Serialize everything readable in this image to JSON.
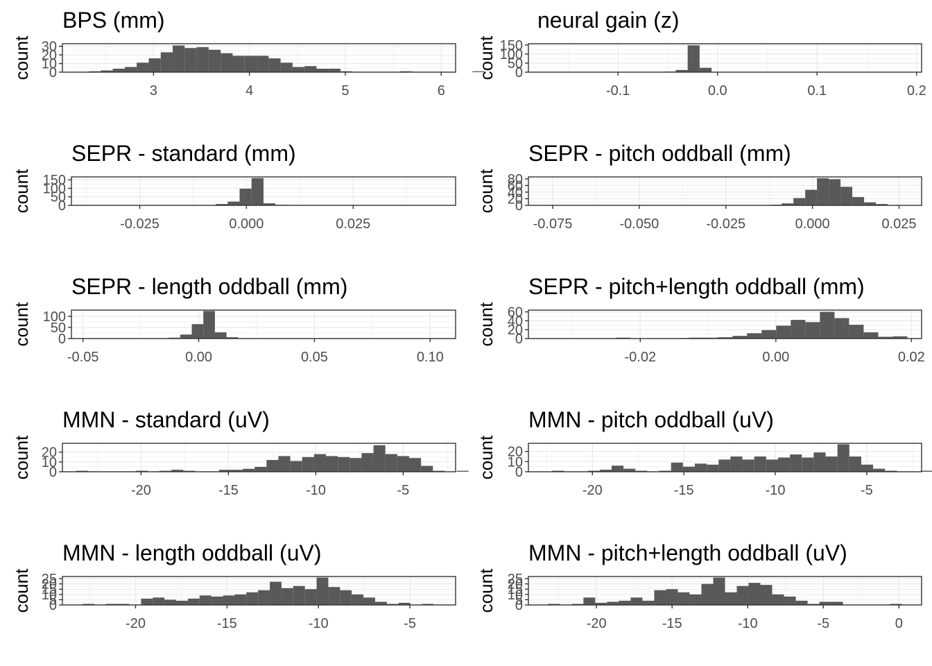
{
  "figure": {
    "ylabel": "count"
  },
  "chart_data": [
    {
      "type": "bar",
      "title": "BPS (mm)",
      "ylabel": "count",
      "x_ticks": [
        3,
        4,
        5,
        6
      ],
      "x_tick_labels": [
        "3",
        "4",
        "5",
        "6"
      ],
      "xlim": [
        2.05,
        6.15
      ],
      "y_ticks": [
        0,
        10,
        20,
        30
      ],
      "y_tick_labels": [
        "0",
        "10",
        "20",
        "30"
      ],
      "ylim": [
        0,
        33
      ],
      "bin_start": 2.2,
      "bin_width": 0.125,
      "counts": [
        0,
        1,
        2,
        4,
        6,
        11,
        16,
        23,
        31,
        28,
        29,
        26,
        22,
        19,
        19,
        19,
        16,
        11,
        6,
        7,
        4,
        4,
        1,
        0,
        0,
        0,
        0,
        1,
        0,
        0,
        0,
        0,
        0,
        1
      ],
      "bar_color": "#595959"
    },
    {
      "type": "bar",
      "title": "neural gain (z)",
      "ylabel": "count",
      "x_ticks": [
        -0.1,
        0.0,
        0.1,
        0.2
      ],
      "x_tick_labels": [
        "-0.1",
        "0.0",
        "0.1",
        "0.2"
      ],
      "xlim": [
        -0.19,
        0.205
      ],
      "y_ticks": [
        0,
        50,
        100,
        150
      ],
      "y_tick_labels": [
        "0",
        "50",
        "100",
        "150"
      ],
      "ylim": [
        0,
        157
      ],
      "bin_start": -0.066,
      "bin_width": 0.012,
      "counts": [
        1,
        3,
        12,
        148,
        24,
        2,
        1,
        0,
        0,
        0,
        0,
        0,
        0,
        0,
        0,
        0,
        0,
        0,
        1
      ],
      "bar_color": "#595959"
    },
    {
      "type": "bar",
      "title": "SEPR - standard (mm)",
      "ylabel": "count",
      "x_ticks": [
        -0.025,
        0.0,
        0.025
      ],
      "x_tick_labels": [
        "-0.025",
        "0.000",
        "0.025"
      ],
      "xlim": [
        -0.041,
        0.049
      ],
      "y_ticks": [
        0,
        50,
        100,
        150
      ],
      "y_tick_labels": [
        "0",
        "50",
        "100",
        "150"
      ],
      "ylim": [
        0,
        167
      ],
      "bin_start": -0.01,
      "bin_width": 0.0028,
      "counts": [
        2,
        8,
        22,
        98,
        160,
        12,
        3
      ],
      "bar_color": "#595959"
    },
    {
      "type": "bar",
      "title": "SEPR - pitch oddball (mm)",
      "ylabel": "count",
      "x_ticks": [
        -0.075,
        -0.05,
        -0.025,
        0.0,
        0.025
      ],
      "x_tick_labels": [
        "-0.075",
        "-0.050",
        "-0.025",
        "0.000",
        "0.025"
      ],
      "xlim": [
        -0.082,
        0.0315
      ],
      "y_ticks": [
        0,
        20,
        40,
        60,
        80
      ],
      "y_tick_labels": [
        "0",
        "20",
        "40",
        "60",
        "80"
      ],
      "ylim": [
        0,
        86
      ],
      "bin_start": -0.0225,
      "bin_width": 0.0034,
      "counts": [
        1,
        0,
        0,
        2,
        6,
        22,
        47,
        82,
        79,
        56,
        25,
        9,
        4,
        1,
        0,
        1
      ],
      "bar_color": "#595959"
    },
    {
      "type": "bar",
      "title": "SEPR - length oddball (mm)",
      "ylabel": "count",
      "x_ticks": [
        -0.05,
        0.0,
        0.05,
        0.1
      ],
      "x_tick_labels": [
        "-0.05",
        "0.00",
        "0.05",
        "0.10"
      ],
      "xlim": [
        -0.055,
        0.111
      ],
      "y_ticks": [
        0,
        50,
        100
      ],
      "y_tick_labels": [
        "0",
        "50",
        "100"
      ],
      "ylim": [
        0,
        128
      ],
      "bin_start": -0.018,
      "bin_width": 0.005,
      "counts": [
        1,
        4,
        18,
        65,
        124,
        28,
        6
      ],
      "bar_color": "#595959"
    },
    {
      "type": "bar",
      "title": "SEPR - pitch+length oddball (mm)",
      "ylabel": "count",
      "x_ticks": [
        -0.02,
        0.0,
        0.02
      ],
      "x_tick_labels": [
        "-0.02",
        "0.00",
        "0.02"
      ],
      "xlim": [
        -0.0365,
        0.0215
      ],
      "y_ticks": [
        0,
        20,
        40,
        60
      ],
      "y_tick_labels": [
        "0",
        "20",
        "40",
        "60"
      ],
      "ylim": [
        0,
        64
      ],
      "bin_start": -0.0236,
      "bin_width": 0.00215,
      "counts": [
        2,
        0,
        0,
        0,
        1,
        2,
        2,
        3,
        6,
        12,
        19,
        29,
        42,
        37,
        60,
        46,
        31,
        14,
        4,
        5,
        0,
        0,
        1
      ],
      "bar_color": "#595959"
    },
    {
      "type": "bar",
      "title": "MMN - standard (uV)",
      "ylabel": "count",
      "x_ticks": [
        -20,
        -15,
        -10,
        -5
      ],
      "x_tick_labels": [
        "-20",
        "-15",
        "-10",
        "-5"
      ],
      "xlim": [
        -24.5,
        -2.0
      ],
      "y_ticks": [
        0,
        10,
        20
      ],
      "y_tick_labels": [
        "0",
        "10",
        "20"
      ],
      "ylim": [
        0,
        29
      ],
      "bin_start": -23.7,
      "bin_width": 0.68,
      "counts": [
        1,
        0,
        0,
        0,
        0,
        1,
        0,
        1,
        2,
        1,
        0,
        0,
        2,
        2,
        3,
        5,
        12,
        16,
        11,
        15,
        18,
        16,
        15,
        14,
        19,
        27,
        18,
        16,
        14,
        6,
        1,
        0,
        1
      ],
      "bar_color": "#595959"
    },
    {
      "type": "bar",
      "title": "MMN - pitch oddball (uV)",
      "ylabel": "count",
      "x_ticks": [
        -20,
        -15,
        -10,
        -5
      ],
      "x_tick_labels": [
        "-20",
        "-15",
        "-10",
        "-5"
      ],
      "xlim": [
        -23.5,
        -2.0
      ],
      "y_ticks": [
        0,
        10,
        20
      ],
      "y_tick_labels": [
        "0",
        "10",
        "20"
      ],
      "ylim": [
        0,
        28
      ],
      "bin_start": -22.2,
      "bin_width": 0.65,
      "counts": [
        1,
        0,
        0,
        1,
        2,
        6,
        3,
        1,
        0,
        1,
        9,
        5,
        8,
        7,
        12,
        15,
        12,
        15,
        12,
        14,
        17,
        14,
        19,
        15,
        27,
        15,
        7,
        3,
        1,
        0,
        0,
        1
      ],
      "bar_color": "#595959"
    },
    {
      "type": "bar",
      "title": "MMN - length oddball (uV)",
      "ylabel": "count",
      "x_ticks": [
        -20,
        -15,
        -10,
        -5
      ],
      "x_tick_labels": [
        "-20",
        "-15",
        "-10",
        "-5"
      ],
      "xlim": [
        -24.0,
        -2.5
      ],
      "y_ticks": [
        0,
        5,
        10,
        15,
        20,
        25
      ],
      "y_tick_labels": [
        "0",
        "5",
        "10",
        "15",
        "20",
        "25"
      ],
      "ylim": [
        0,
        27
      ],
      "bin_start": -22.9,
      "bin_width": 0.64,
      "counts": [
        1,
        0,
        1,
        1,
        0,
        6,
        7,
        5,
        4,
        6,
        9,
        8,
        9,
        10,
        12,
        14,
        22,
        16,
        18,
        15,
        26,
        17,
        14,
        10,
        7,
        3,
        1,
        2,
        0,
        1
      ],
      "bar_color": "#595959"
    },
    {
      "type": "bar",
      "title": "MMN - pitch+length oddball (uV)",
      "ylabel": "count",
      "x_ticks": [
        -20,
        -15,
        -10,
        -5,
        0
      ],
      "x_tick_labels": [
        "-20",
        "-15",
        "-10",
        "-5",
        "0"
      ],
      "xlim": [
        -24.5,
        1.5
      ],
      "y_ticks": [
        0,
        5,
        10,
        15,
        20,
        25
      ],
      "y_tick_labels": [
        "0",
        "5",
        "10",
        "15",
        "20",
        "25"
      ],
      "ylim": [
        0,
        27
      ],
      "bin_start": -23.2,
      "bin_width": 0.78,
      "counts": [
        1,
        0,
        1,
        7,
        2,
        3,
        4,
        7,
        4,
        14,
        15,
        12,
        10,
        20,
        26,
        12,
        18,
        21,
        19,
        10,
        8,
        4,
        1,
        3,
        3,
        0,
        0,
        0,
        0,
        1
      ],
      "bar_color": "#595959"
    }
  ]
}
